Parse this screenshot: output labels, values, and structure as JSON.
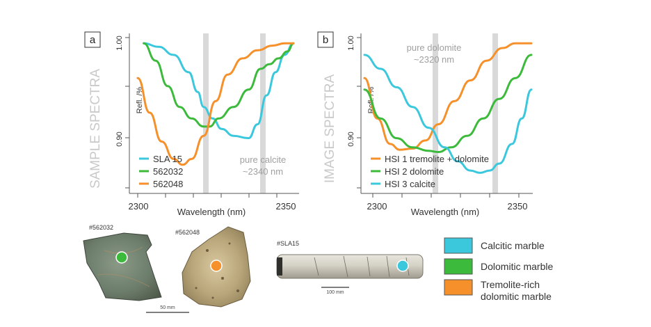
{
  "chart_data": [
    {
      "type": "line",
      "panel_label": "a",
      "side_label": "SAMPLE SPECTRA",
      "xlabel": "Wavelength (nm)",
      "ylabel": "Refl. /%",
      "x_ticks": [
        "2300",
        "2350"
      ],
      "y_ticks": [
        "1.00",
        "0.90"
      ],
      "xlim": [
        2298,
        2350
      ],
      "ylim": [
        0.875,
        1.005
      ],
      "band_centers": [
        2320,
        2340
      ],
      "annotation": [
        "pure calcite",
        "~2340 nm"
      ],
      "legend_position": "bottom-left",
      "series": [
        {
          "name": "SLA 15",
          "color": "#3cc8dc",
          "x": [
            2300,
            2305,
            2310,
            2315,
            2318,
            2320,
            2323,
            2326,
            2330,
            2335,
            2338,
            2341,
            2344,
            2347,
            2350
          ],
          "y": [
            1.0,
            0.997,
            0.99,
            0.975,
            0.958,
            0.945,
            0.935,
            0.926,
            0.92,
            0.918,
            0.93,
            0.955,
            0.975,
            0.99,
            1.0
          ]
        },
        {
          "name": "562032",
          "color": "#3cba3c",
          "x": [
            2300,
            2304,
            2308,
            2312,
            2316,
            2320,
            2322,
            2325,
            2330,
            2335,
            2339,
            2342,
            2345,
            2348,
            2350
          ],
          "y": [
            1.0,
            0.985,
            0.963,
            0.945,
            0.935,
            0.928,
            0.928,
            0.935,
            0.945,
            0.96,
            0.978,
            0.982,
            0.987,
            0.993,
            1.0
          ]
        },
        {
          "name": "562048",
          "color": "#f5902a",
          "x": [
            2298,
            2302,
            2306,
            2310,
            2313,
            2316,
            2320,
            2324,
            2328,
            2333,
            2338,
            2343,
            2347,
            2350
          ],
          "y": [
            0.97,
            0.94,
            0.915,
            0.9,
            0.895,
            0.9,
            0.92,
            0.95,
            0.973,
            0.987,
            0.994,
            0.998,
            1.0,
            1.0
          ]
        }
      ]
    },
    {
      "type": "line",
      "panel_label": "b",
      "side_label": "IMAGE SPECTRA",
      "xlabel": "Wavelength (nm)",
      "ylabel": "Refl. /%",
      "x_ticks": [
        "2300",
        "2350"
      ],
      "y_ticks": [
        "1.00",
        "0.90"
      ],
      "xlim": [
        2298,
        2350
      ],
      "ylim": [
        0.875,
        1.005
      ],
      "band_centers": [
        2320,
        2340
      ],
      "annotation": [
        "pure dolomite",
        "~2320 nm"
      ],
      "legend_position": "bottom-left",
      "series": [
        {
          "name": "HSI 1 tremolite + dolomite",
          "color": "#f5902a",
          "x": [
            2298,
            2302,
            2306,
            2309,
            2313,
            2317,
            2321,
            2326,
            2331,
            2336,
            2341,
            2345,
            2350
          ],
          "y": [
            0.97,
            0.935,
            0.913,
            0.908,
            0.909,
            0.916,
            0.93,
            0.95,
            0.968,
            0.985,
            0.996,
            1.0,
            1.0
          ]
        },
        {
          "name": "HSI 2 dolomite",
          "color": "#3cba3c",
          "x": [
            2298,
            2303,
            2308,
            2313,
            2318,
            2321,
            2325,
            2330,
            2335,
            2340,
            2345,
            2350
          ],
          "y": [
            0.96,
            0.935,
            0.918,
            0.91,
            0.907,
            0.906,
            0.91,
            0.92,
            0.935,
            0.952,
            0.97,
            0.99
          ]
        },
        {
          "name": "HSI 3 calcite",
          "color": "#3cc8dc",
          "x": [
            2298,
            2303,
            2308,
            2313,
            2318,
            2323,
            2327,
            2331,
            2334,
            2337,
            2340,
            2344,
            2347,
            2350
          ],
          "y": [
            0.99,
            0.978,
            0.962,
            0.945,
            0.927,
            0.91,
            0.898,
            0.89,
            0.888,
            0.89,
            0.896,
            0.913,
            0.935,
            0.96
          ]
        }
      ]
    }
  ],
  "specimens": [
    {
      "id": "#562032",
      "marker_color": "#3cba3c",
      "scale": "50 mm"
    },
    {
      "id": "#562048",
      "marker_color": "#f5902a"
    },
    {
      "id": "#SLA15",
      "marker_color": "#3cc8dc",
      "scale": "100 mm"
    }
  ],
  "legend": [
    {
      "label": "Calcitic marble",
      "color": "#3cc8dc"
    },
    {
      "label": "Dolomitic marble",
      "color": "#3cba3c"
    },
    {
      "label": "Tremolite-rich dolomitic marble",
      "lines": [
        "Tremolite-rich",
        "dolomitic marble"
      ],
      "color": "#f5902a"
    }
  ]
}
